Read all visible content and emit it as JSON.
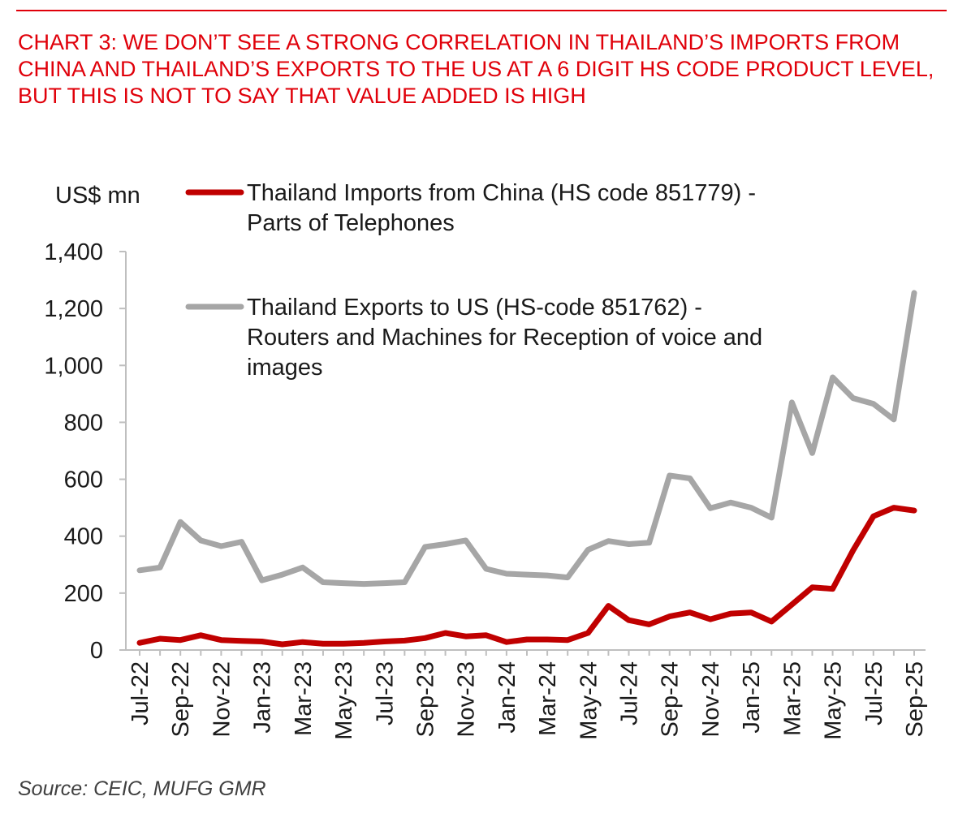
{
  "title": "CHART 3: WE DON’T SEE A STRONG CORRELATION IN THAILAND’S IMPORTS FROM CHINA AND THAILAND’S EXPORTS TO THE US AT A 6 DIGIT HS CODE PRODUCT LEVEL, BUT THIS IS NOT TO SAY THAT VALUE ADDED IS HIGH",
  "source": "Source: CEIC, MUFG GMR",
  "colors": {
    "title": "#e0000a",
    "imports_series": "#c00000",
    "exports_series": "#a6a6a6",
    "axis": "#bfbfbf"
  },
  "chart_data": {
    "type": "line",
    "ylabel": "US$ mn",
    "ylim": [
      0,
      1400
    ],
    "yticks": [
      0,
      200,
      400,
      600,
      800,
      1000,
      1200,
      1400
    ],
    "ytick_labels": [
      "0",
      "200",
      "400",
      "600",
      "800",
      "1,000",
      "1,200",
      "1,400"
    ],
    "x": [
      "Jul-22",
      "Aug-22",
      "Sep-22",
      "Oct-22",
      "Nov-22",
      "Dec-22",
      "Jan-23",
      "Feb-23",
      "Mar-23",
      "Apr-23",
      "May-23",
      "Jun-23",
      "Jul-23",
      "Aug-23",
      "Sep-23",
      "Oct-23",
      "Nov-23",
      "Dec-23",
      "Jan-24",
      "Feb-24",
      "Mar-24",
      "Apr-24",
      "May-24",
      "Jun-24",
      "Jul-24",
      "Aug-24",
      "Sep-24",
      "Oct-24",
      "Nov-24",
      "Dec-24",
      "Jan-25",
      "Feb-25",
      "Mar-25",
      "Apr-25",
      "May-25",
      "Jun-25",
      "Jul-25",
      "Aug-25",
      "Sep-25"
    ],
    "xtick_labels": [
      "Jul-22",
      "Sep-22",
      "Nov-22",
      "Jan-23",
      "Mar-23",
      "May-23",
      "Jul-23",
      "Sep-23",
      "Nov-23",
      "Jan-24",
      "Mar-24",
      "May-24",
      "Jul-24",
      "Sep-24",
      "Nov-24",
      "Jan-25",
      "Mar-25",
      "May-25",
      "Jul-25",
      "Sep-25"
    ],
    "grid": false,
    "series": [
      {
        "name": "Thailand Imports from China (HS code 851779) - Parts of Telephones",
        "legend_lines": [
          "Thailand Imports from China (HS code 851779) -",
          "Parts of Telephones"
        ],
        "color": "#c00000",
        "values": [
          25,
          40,
          35,
          52,
          35,
          32,
          30,
          20,
          28,
          22,
          22,
          25,
          30,
          33,
          42,
          60,
          48,
          52,
          28,
          37,
          37,
          35,
          60,
          155,
          105,
          90,
          118,
          132,
          108,
          128,
          132,
          100,
          160,
          220,
          215,
          350,
          470,
          500,
          490
        ]
      },
      {
        "name": "Thailand Exports to US (HS-code 851762) - Routers and Machines for Reception of voice and images",
        "legend_lines": [
          "Thailand Exports to US (HS-code 851762) -",
          "Routers and Machines for Reception of voice and",
          "images"
        ],
        "color": "#a6a6a6",
        "values": [
          280,
          290,
          450,
          385,
          365,
          380,
          245,
          265,
          290,
          238,
          235,
          232,
          235,
          238,
          362,
          372,
          385,
          285,
          268,
          265,
          262,
          255,
          352,
          383,
          372,
          377,
          613,
          603,
          498,
          518,
          500,
          465,
          870,
          692,
          958,
          885,
          865,
          810,
          1255
        ]
      }
    ]
  }
}
